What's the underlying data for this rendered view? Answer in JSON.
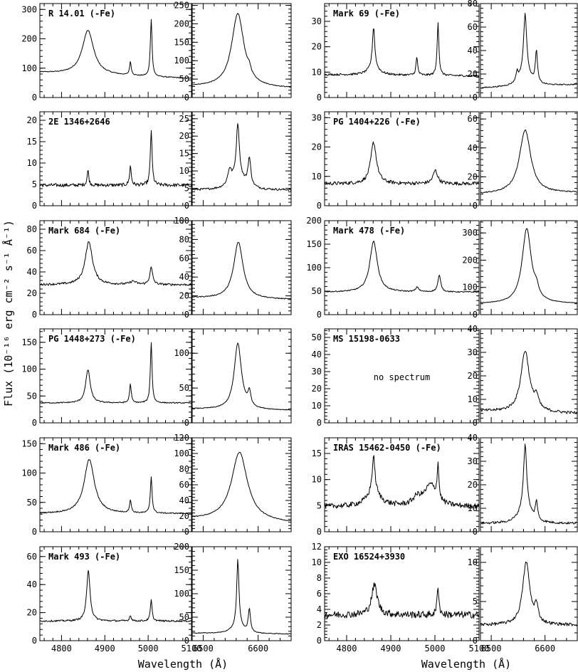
{
  "figure": {
    "x_axis_title": "Wavelength (Å)",
    "y_axis_title": "Flux (10⁻¹⁶ erg cm⁻² s⁻¹ Å⁻¹)",
    "hb_xlim": [
      4750,
      5100
    ],
    "hb_xticks": [
      4800,
      4900,
      5000,
      5100
    ],
    "ha_xlim": [
      6480,
      6660
    ],
    "ha_xticks": [
      6500,
      6600
    ],
    "line_color": "#000000",
    "background": "#ffffff"
  },
  "chart_data": [
    {
      "type": "line",
      "label": "R 14.01 (-Fe)",
      "region": "Hbeta-OIII",
      "column": "left",
      "row": 0,
      "ylim": [
        0,
        320
      ],
      "yticks": [
        0,
        100,
        200,
        300
      ],
      "continuum": [
        85,
        65
      ],
      "lines": [
        {
          "center": 4861,
          "amp": 150,
          "width": 20
        },
        {
          "center": 4959,
          "amp": 45,
          "width": 3
        },
        {
          "center": 5007,
          "amp": 195,
          "width": 3
        }
      ],
      "noise": 1.5
    },
    {
      "type": "line",
      "label": "",
      "region": "Halpha",
      "column": "left",
      "row": 0,
      "ylim": [
        0,
        255
      ],
      "yticks": [
        0,
        50,
        100,
        150,
        200,
        250
      ],
      "continuum": [
        30,
        25
      ],
      "lines": [
        {
          "center": 6563,
          "amp": 200,
          "width": 17
        },
        {
          "center": 6584,
          "amp": 15,
          "width": 4
        }
      ],
      "noise": 1
    },
    {
      "type": "line",
      "label": "2E 1346+2646",
      "region": "Hbeta-OIII",
      "column": "left",
      "row": 1,
      "ylim": [
        0,
        22
      ],
      "yticks": [
        0,
        5,
        10,
        15,
        20
      ],
      "continuum": [
        4.8,
        4.8
      ],
      "lines": [
        {
          "center": 4861,
          "amp": 3.5,
          "width": 3
        },
        {
          "center": 4959,
          "amp": 4.5,
          "width": 3
        },
        {
          "center": 5007,
          "amp": 13,
          "width": 3
        }
      ],
      "noise": 0.4
    },
    {
      "type": "line",
      "label": "",
      "region": "Halpha",
      "column": "left",
      "row": 1,
      "ylim": [
        0,
        27
      ],
      "yticks": [
        0,
        5,
        10,
        15,
        20,
        25
      ],
      "continuum": [
        4.5,
        4.5
      ],
      "lines": [
        {
          "center": 6563,
          "amp": 15,
          "width": 4
        },
        {
          "center": 6548,
          "amp": 4,
          "width": 5
        },
        {
          "center": 6584,
          "amp": 8,
          "width": 4
        },
        {
          "center": 6563,
          "amp": 4,
          "width": 18
        }
      ],
      "noise": 0.3
    },
    {
      "type": "line",
      "label": "PG 1404+226 (-Fe)",
      "region": "Hbeta-OIII",
      "column": "right",
      "row": 1,
      "ylim": [
        0,
        32
      ],
      "yticks": [
        0,
        10,
        20,
        30
      ],
      "continuum": [
        7.5,
        7.5
      ],
      "lines": [
        {
          "center": 4861,
          "amp": 14,
          "width": 10
        },
        {
          "center": 5001,
          "amp": 4.5,
          "width": 8
        }
      ],
      "noise": 0.6
    },
    {
      "type": "line",
      "label": "",
      "region": "Halpha",
      "column": "right",
      "row": 1,
      "ylim": [
        0,
        65
      ],
      "yticks": [
        0,
        20,
        40,
        60
      ],
      "continuum": [
        8,
        9
      ],
      "lines": [
        {
          "center": 6563,
          "amp": 44,
          "width": 16
        }
      ],
      "noise": 0.4
    },
    {
      "type": "line",
      "label": "Mark 69 (-Fe)",
      "region": "Hbeta-OIII",
      "column": "right",
      "row": 0,
      "ylim": [
        0,
        37
      ],
      "yticks": [
        0,
        10,
        20,
        30
      ],
      "continuum": [
        9,
        8.5
      ],
      "lines": [
        {
          "center": 4861,
          "amp": 16,
          "width": 4
        },
        {
          "center": 4861,
          "amp": 3,
          "width": 18
        },
        {
          "center": 4959,
          "amp": 7,
          "width": 3
        },
        {
          "center": 5007,
          "amp": 21,
          "width": 3
        }
      ],
      "noise": 0.4
    },
    {
      "type": "line",
      "label": "",
      "region": "Halpha",
      "column": "right",
      "row": 0,
      "ylim": [
        0,
        80
      ],
      "yticks": [
        0,
        20,
        40,
        60,
        80
      ],
      "continuum": [
        8,
        11
      ],
      "lines": [
        {
          "center": 6563,
          "amp": 48,
          "width": 4
        },
        {
          "center": 6563,
          "amp": 14,
          "width": 14
        },
        {
          "center": 6584,
          "amp": 27,
          "width": 3
        },
        {
          "center": 6548,
          "amp": 8,
          "width": 3
        }
      ],
      "noise": 0.5
    },
    {
      "type": "line",
      "label": "Mark 684 (-Fe)",
      "region": "Hbeta-OIII",
      "column": "left",
      "row": 2,
      "ylim": [
        0,
        88
      ],
      "yticks": [
        0,
        20,
        40,
        60,
        80
      ],
      "continuum": [
        28,
        28
      ],
      "lines": [
        {
          "center": 4863,
          "amp": 40,
          "width": 13
        },
        {
          "center": 5007,
          "amp": 16,
          "width": 5
        },
        {
          "center": 4965,
          "amp": 3,
          "width": 10
        }
      ],
      "noise": 1
    },
    {
      "type": "line",
      "label": "",
      "region": "Halpha",
      "column": "left",
      "row": 2,
      "ylim": [
        0,
        100
      ],
      "yticks": [
        0,
        20,
        40,
        60,
        80,
        100
      ],
      "continuum": [
        18,
        16
      ],
      "lines": [
        {
          "center": 6564,
          "amp": 60,
          "width": 13
        }
      ],
      "noise": 0.5
    },
    {
      "type": "line",
      "label": "Mark 478 (-Fe)",
      "region": "Hbeta-OIII",
      "column": "right",
      "row": 2,
      "ylim": [
        0,
        200
      ],
      "yticks": [
        0,
        50,
        100,
        150,
        200
      ],
      "continuum": [
        48,
        48
      ],
      "lines": [
        {
          "center": 4861,
          "amp": 108,
          "width": 13
        },
        {
          "center": 5010,
          "amp": 35,
          "width": 5
        },
        {
          "center": 4960,
          "amp": 10,
          "width": 5
        }
      ],
      "noise": 1.2
    },
    {
      "type": "line",
      "label": "",
      "region": "Halpha",
      "column": "right",
      "row": 2,
      "ylim": [
        0,
        345
      ],
      "yticks": [
        0,
        100,
        200,
        300
      ],
      "continuum": [
        40,
        40
      ],
      "lines": [
        {
          "center": 6566,
          "amp": 275,
          "width": 13
        },
        {
          "center": 6584,
          "amp": 30,
          "width": 6
        }
      ],
      "noise": 1
    },
    {
      "type": "line",
      "label": "PG 1448+273 (-Fe)",
      "region": "Hbeta-OIII",
      "column": "left",
      "row": 3,
      "ylim": [
        0,
        175
      ],
      "yticks": [
        0,
        50,
        100,
        150
      ],
      "continuum": [
        37,
        37
      ],
      "lines": [
        {
          "center": 4861,
          "amp": 62,
          "width": 8
        },
        {
          "center": 4959,
          "amp": 35,
          "width": 3
        },
        {
          "center": 5007,
          "amp": 112,
          "width": 3
        }
      ],
      "noise": 1
    },
    {
      "type": "line",
      "label": "",
      "region": "Halpha",
      "column": "left",
      "row": 3,
      "ylim": [
        0,
        135
      ],
      "yticks": [
        0,
        50,
        100
      ],
      "continuum": [
        20,
        18
      ],
      "lines": [
        {
          "center": 6563,
          "amp": 95,
          "width": 10
        },
        {
          "center": 6584,
          "amp": 20,
          "width": 4
        }
      ],
      "noise": 0.6
    },
    {
      "type": "line",
      "label": "MS 15198-0633",
      "region": "Hbeta-OIII",
      "column": "right",
      "row": 3,
      "ylim": [
        0,
        55
      ],
      "yticks": [
        0,
        10,
        20,
        30,
        40,
        50
      ],
      "note": "no spectrum"
    },
    {
      "type": "line",
      "label": "",
      "region": "Halpha",
      "column": "right",
      "row": 3,
      "ylim": [
        0,
        40
      ],
      "yticks": [
        0,
        10,
        20,
        30,
        40
      ],
      "continuum": [
        5,
        4
      ],
      "lines": [
        {
          "center": 6563,
          "amp": 26,
          "width": 12
        },
        {
          "center": 6584,
          "amp": 5,
          "width": 6
        }
      ],
      "noise": 0.6
    },
    {
      "type": "line",
      "label": "Mark 486 (-Fe)",
      "region": "Hbeta-OIII",
      "column": "left",
      "row": 4,
      "ylim": [
        0,
        160
      ],
      "yticks": [
        0,
        50,
        100,
        150
      ],
      "continuum": [
        31,
        31
      ],
      "lines": [
        {
          "center": 4864,
          "amp": 92,
          "width": 18
        },
        {
          "center": 4959,
          "amp": 22,
          "width": 3
        },
        {
          "center": 5007,
          "amp": 62,
          "width": 3
        }
      ],
      "noise": 1
    },
    {
      "type": "line",
      "label": "",
      "region": "Halpha",
      "column": "left",
      "row": 4,
      "ylim": [
        0,
        120
      ],
      "yticks": [
        0,
        20,
        40,
        60,
        80,
        100,
        120
      ],
      "continuum": [
        16,
        11
      ],
      "lines": [
        {
          "center": 6566,
          "amp": 88,
          "width": 22
        }
      ],
      "noise": 0.5
    },
    {
      "type": "line",
      "label": "IRAS 15462-0450 (-Fe)",
      "region": "Hbeta-OIII",
      "column": "right",
      "row": 4,
      "ylim": [
        0,
        18
      ],
      "yticks": [
        0,
        5,
        10,
        15
      ],
      "continuum": [
        4.8,
        4.8
      ],
      "lines": [
        {
          "center": 4861,
          "amp": 7,
          "width": 5
        },
        {
          "center": 4861,
          "amp": 2.5,
          "width": 25
        },
        {
          "center": 5007,
          "amp": 6.5,
          "width": 3
        },
        {
          "center": 4990,
          "amp": 4,
          "width": 20
        },
        {
          "center": 4960,
          "amp": 1.5,
          "width": 15
        }
      ],
      "noise": 0.5
    },
    {
      "type": "line",
      "label": "",
      "region": "Halpha",
      "column": "right",
      "row": 4,
      "ylim": [
        0,
        40
      ],
      "yticks": [
        0,
        10,
        20,
        30,
        40
      ],
      "continuum": [
        3.5,
        3.5
      ],
      "lines": [
        {
          "center": 6563,
          "amp": 25,
          "width": 4
        },
        {
          "center": 6563,
          "amp": 9,
          "width": 14
        },
        {
          "center": 6584,
          "amp": 8,
          "width": 3
        }
      ],
      "noise": 0.5
    },
    {
      "type": "line",
      "label": "Mark 493 (-Fe)",
      "region": "Hbeta-OIII",
      "column": "left",
      "row": 5,
      "ylim": [
        0,
        67
      ],
      "yticks": [
        0,
        20,
        40,
        60
      ],
      "continuum": [
        14,
        14
      ],
      "lines": [
        {
          "center": 4862,
          "amp": 36,
          "width": 6
        },
        {
          "center": 5007,
          "amp": 15,
          "width": 3
        },
        {
          "center": 4959,
          "amp": 4,
          "width": 3
        }
      ],
      "noise": 0.6
    },
    {
      "type": "line",
      "label": "",
      "region": "Halpha",
      "column": "left",
      "row": 5,
      "ylim": [
        0,
        200
      ],
      "yticks": [
        0,
        50,
        100,
        150,
        200
      ],
      "continuum": [
        16,
        14
      ],
      "lines": [
        {
          "center": 6563,
          "amp": 140,
          "width": 3
        },
        {
          "center": 6563,
          "amp": 18,
          "width": 14
        },
        {
          "center": 6584,
          "amp": 50,
          "width": 3
        }
      ],
      "noise": 0.8
    },
    {
      "type": "line",
      "label": "EXO 16524+3930",
      "region": "Hbeta-OIII",
      "column": "right",
      "row": 5,
      "ylim": [
        0,
        12
      ],
      "yticks": [
        0,
        2,
        4,
        6,
        8,
        10,
        12
      ],
      "continuum": [
        3.3,
        3.3
      ],
      "lines": [
        {
          "center": 4863,
          "amp": 3.8,
          "width": 10
        },
        {
          "center": 5007,
          "amp": 3.8,
          "width": 3
        }
      ],
      "noise": 0.45
    },
    {
      "type": "line",
      "label": "",
      "region": "Halpha",
      "column": "right",
      "row": 5,
      "ylim": [
        0,
        12
      ],
      "yticks": [
        0,
        5,
        10
      ],
      "continuum": [
        2,
        2
      ],
      "lines": [
        {
          "center": 6565,
          "amp": 8,
          "width": 10
        },
        {
          "center": 6584,
          "amp": 2,
          "width": 5
        }
      ],
      "noise": 0.2
    }
  ]
}
